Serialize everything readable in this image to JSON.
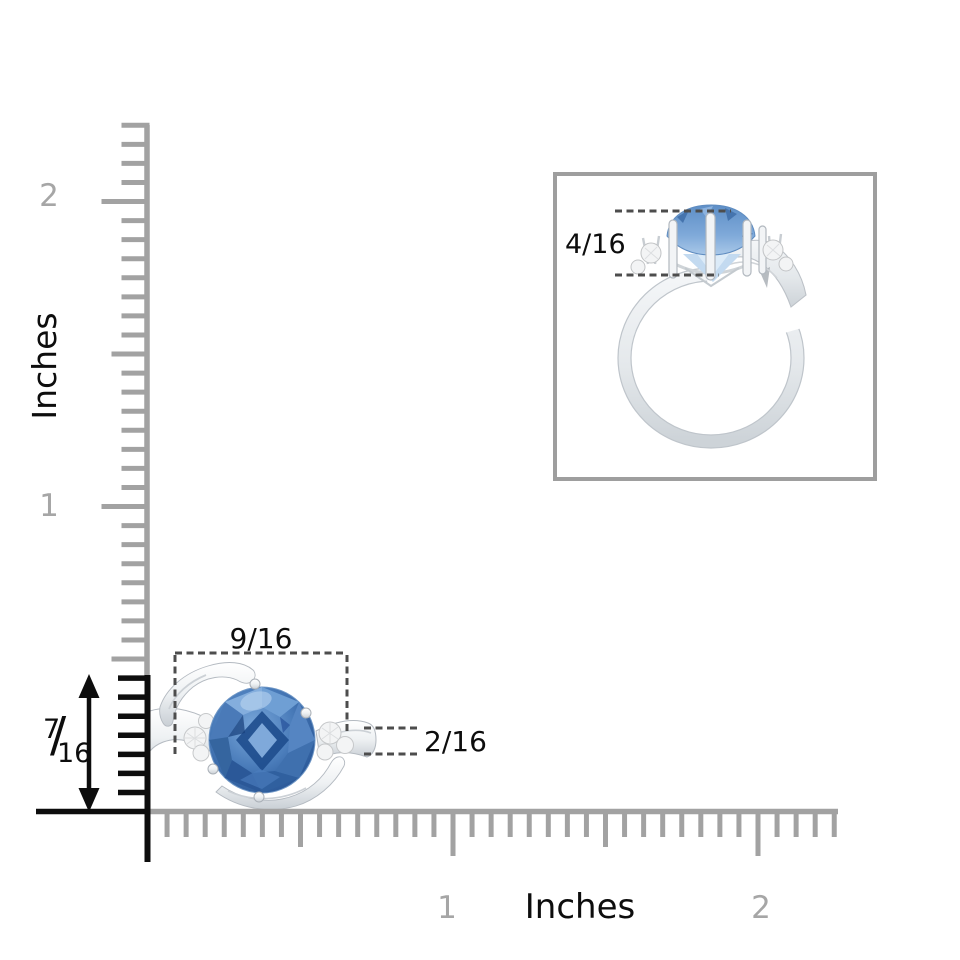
{
  "rulers": {
    "vertical": {
      "unit_label": "Inches",
      "labels": {
        "one": "1",
        "two": "2"
      }
    },
    "horizontal": {
      "unit_label": "Inches",
      "labels": {
        "one": "1",
        "two": "2"
      }
    }
  },
  "measurements": {
    "width_label": "9/16",
    "band_label": "2/16",
    "profile_label": "4/16",
    "height": {
      "numerator": "7",
      "slash": "/",
      "denominator": "16"
    }
  },
  "colors": {
    "ruler_gray": "#a2a2a2",
    "ruler_label_gray": "#a6a6a6",
    "ink_black": "#0d0d0d",
    "dash_gray": "#4d4d4d",
    "inset_border_gray": "#9e9e9e",
    "metal_light": "#f8f9fa",
    "metal_shadow": "#b9bfc5",
    "stone_blue": "#4a7cba",
    "stone_blue_dark": "#1d4a86",
    "stone_blue_light": "#a9cbee"
  }
}
